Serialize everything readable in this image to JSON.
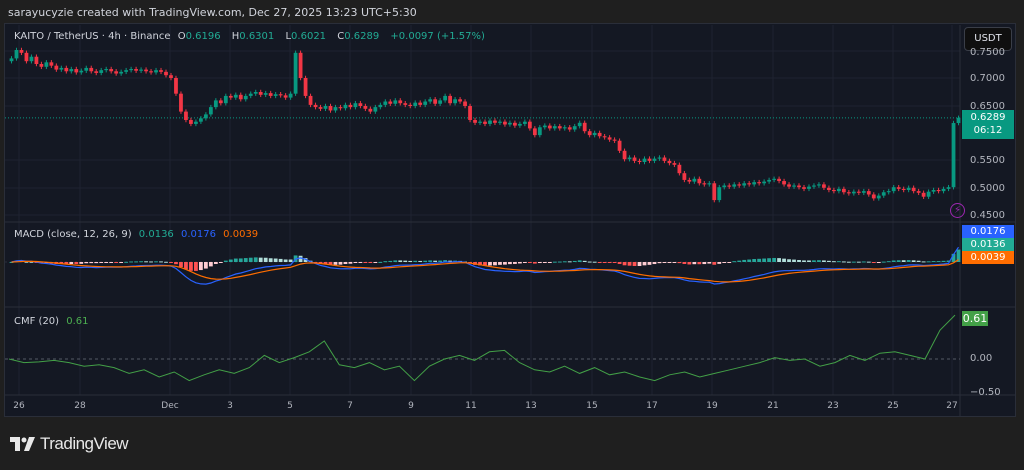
{
  "credit": "sarayucyzie created with TradingView.com, Dec 27, 2025 13:23 UTC+5:30",
  "symbol": {
    "name": "KAITO / TetherUS · 4h · Binance",
    "o_label": "O",
    "o": "0.6196",
    "h_label": "H",
    "h": "0.6301",
    "l_label": "L",
    "l": "0.6021",
    "c_label": "C",
    "c": "0.6289",
    "change": "+0.0097 (+1.57%)"
  },
  "currency_button": "USDT",
  "price_axis": [
    "0.7500",
    "0.7000",
    "0.6500",
    "0.5500",
    "0.5000",
    "0.4500"
  ],
  "last_price": {
    "value": "0.6289",
    "countdown": "06:12"
  },
  "macd": {
    "title": "MACD (close, 12, 26, 9)",
    "hist": "0.0136",
    "macd": "0.0176",
    "signal": "0.0039"
  },
  "cmf": {
    "title": "CMF (20)",
    "value": "0.61",
    "axis": [
      "0.00",
      "−0.50"
    ]
  },
  "x_axis": [
    "26",
    "28",
    "Dec",
    "3",
    "5",
    "7",
    "9",
    "11",
    "13",
    "15",
    "17",
    "19",
    "21",
    "23",
    "25",
    "27"
  ],
  "brand": "TradingView",
  "colors": {
    "up": "#089981",
    "down": "#f23645",
    "macd": "#2962ff",
    "signal": "#ff6d00",
    "cmf": "#43a047"
  },
  "chart_data": {
    "type": "candlestick",
    "interval": "4h",
    "closes": [
      0.735,
      0.75,
      0.745,
      0.73,
      0.738,
      0.725,
      0.72,
      0.728,
      0.722,
      0.715,
      0.718,
      0.712,
      0.716,
      0.71,
      0.713,
      0.718,
      0.712,
      0.709,
      0.714,
      0.716,
      0.712,
      0.708,
      0.711,
      0.714,
      0.716,
      0.713,
      0.715,
      0.712,
      0.71,
      0.714,
      0.711,
      0.705,
      0.7,
      0.672,
      0.64,
      0.625,
      0.618,
      0.622,
      0.628,
      0.635,
      0.648,
      0.66,
      0.655,
      0.668,
      0.665,
      0.67,
      0.662,
      0.668,
      0.672,
      0.675,
      0.67,
      0.673,
      0.668,
      0.671,
      0.669,
      0.665,
      0.672,
      0.745,
      0.7,
      0.668,
      0.652,
      0.648,
      0.645,
      0.65,
      0.642,
      0.648,
      0.646,
      0.652,
      0.648,
      0.655,
      0.65,
      0.645,
      0.64,
      0.648,
      0.652,
      0.658,
      0.654,
      0.66,
      0.655,
      0.652,
      0.65,
      0.656,
      0.652,
      0.658,
      0.662,
      0.654,
      0.66,
      0.668,
      0.655,
      0.662,
      0.658,
      0.65,
      0.625,
      0.62,
      0.622,
      0.618,
      0.624,
      0.62,
      0.622,
      0.617,
      0.62,
      0.615,
      0.618,
      0.622,
      0.61,
      0.598,
      0.612,
      0.615,
      0.61,
      0.614,
      0.61,
      0.612,
      0.608,
      0.614,
      0.62,
      0.605,
      0.598,
      0.602,
      0.596,
      0.594,
      0.59,
      0.588,
      0.57,
      0.555,
      0.558,
      0.552,
      0.55,
      0.556,
      0.552,
      0.556,
      0.558,
      0.552,
      0.548,
      0.545,
      0.53,
      0.518,
      0.515,
      0.52,
      0.512,
      0.51,
      0.512,
      0.482,
      0.505,
      0.508,
      0.506,
      0.51,
      0.508,
      0.512,
      0.51,
      0.514,
      0.512,
      0.515,
      0.518,
      0.52,
      0.516,
      0.51,
      0.506,
      0.508,
      0.505,
      0.502,
      0.506,
      0.508,
      0.51,
      0.504,
      0.5,
      0.498,
      0.502,
      0.496,
      0.494,
      0.497,
      0.495,
      0.498,
      0.492,
      0.485,
      0.49,
      0.496,
      0.498,
      0.505,
      0.502,
      0.5,
      0.504,
      0.498,
      0.495,
      0.488,
      0.497,
      0.5,
      0.498,
      0.502,
      0.505,
      0.6196,
      0.6289
    ],
    "cmf": [
      0.0,
      -0.05,
      -0.04,
      -0.02,
      -0.05,
      -0.1,
      -0.08,
      -0.12,
      -0.2,
      -0.15,
      -0.25,
      -0.18,
      -0.3,
      -0.22,
      -0.15,
      -0.2,
      -0.12,
      0.05,
      -0.05,
      0.02,
      0.1,
      0.25,
      -0.08,
      -0.12,
      -0.05,
      -0.15,
      -0.1,
      -0.3,
      -0.1,
      0.0,
      0.05,
      -0.02,
      0.1,
      0.12,
      -0.05,
      -0.15,
      -0.18,
      -0.1,
      -0.2,
      -0.12,
      -0.22,
      -0.18,
      -0.25,
      -0.3,
      -0.22,
      -0.18,
      -0.25,
      -0.2,
      -0.15,
      -0.1,
      -0.05,
      0.02,
      -0.02,
      0.0,
      -0.1,
      -0.05,
      0.05,
      -0.02,
      0.08,
      0.1,
      0.05,
      0.0,
      0.4,
      0.61
    ],
    "price_range": [
      0.44,
      0.76
    ],
    "cmf_range": [
      -0.5,
      0.5
    ]
  }
}
